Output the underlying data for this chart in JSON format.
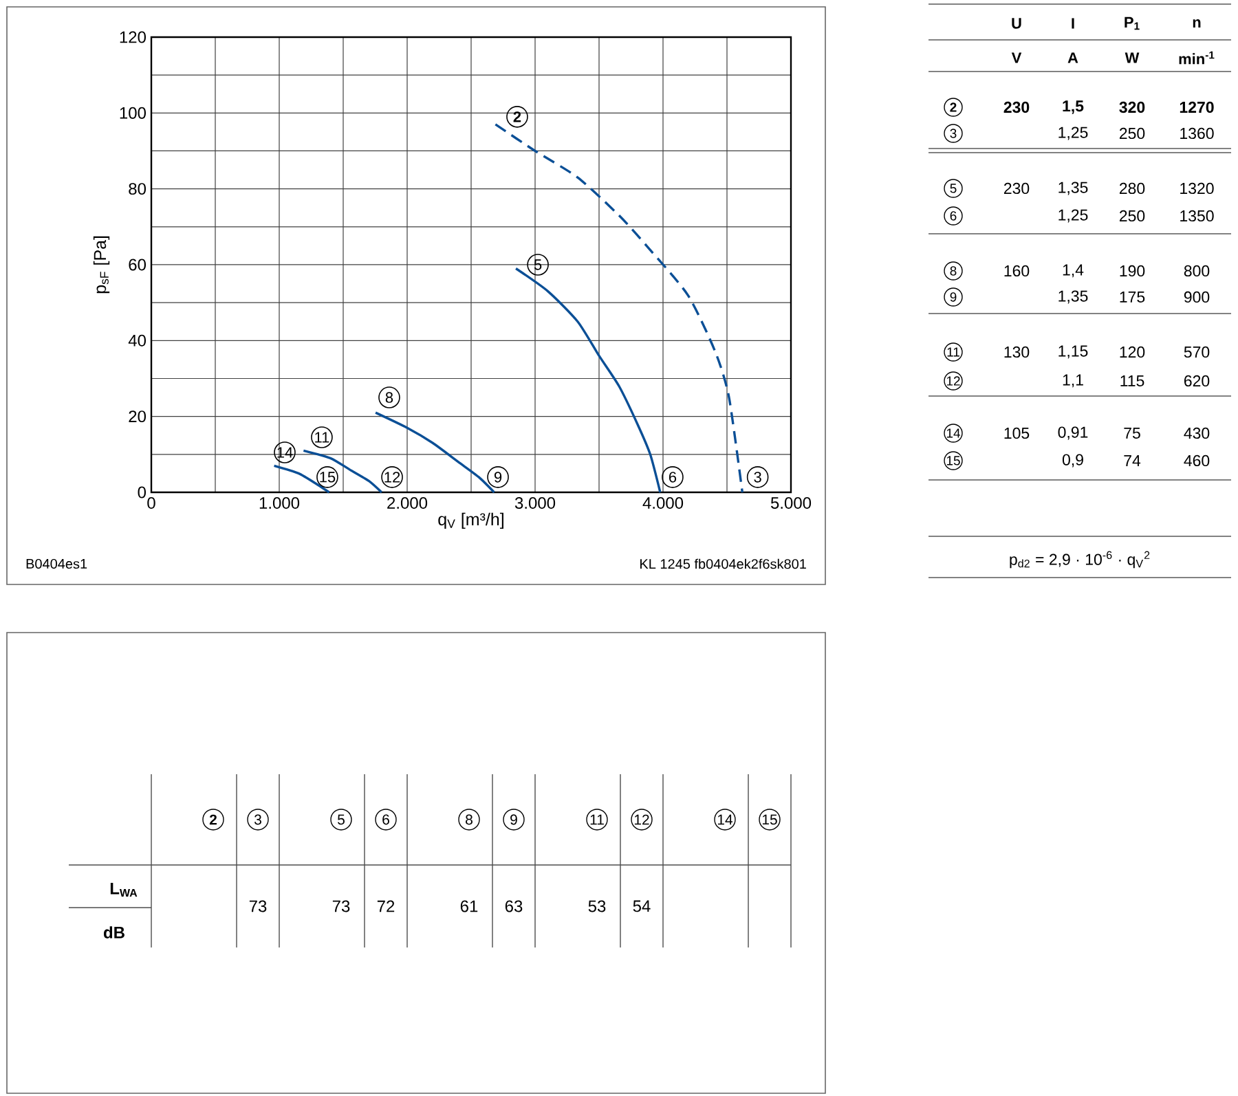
{
  "chart_data": [
    {
      "type": "line",
      "xlabel": "q$_{V}$ [m³/h]",
      "ylabel": "p$_{sF}$ [Pa]",
      "xlim": [
        0,
        5000
      ],
      "ylim": [
        0,
        120
      ],
      "xticks": [
        0,
        {
          "value": 500,
          "label": null
        },
        {
          "value": 1000,
          "label": "1.000"
        },
        {
          "value": 1500,
          "label": null
        },
        {
          "value": 2000,
          "label": "2.000"
        },
        {
          "value": 2500,
          "label": null
        },
        {
          "value": 3000,
          "label": "3.000"
        },
        {
          "value": 3500,
          "label": null
        },
        {
          "value": 4000,
          "label": "4.000"
        },
        {
          "value": 4500,
          "label": null
        },
        {
          "value": 5000,
          "label": "5.000"
        }
      ],
      "yticks": [
        0,
        {
          "value": 10,
          "label": null
        },
        20,
        {
          "value": 30,
          "label": null
        },
        40,
        {
          "value": 50,
          "label": null
        },
        60,
        {
          "value": 70,
          "label": null
        },
        80,
        {
          "value": 90,
          "label": null
        },
        100,
        {
          "value": 110,
          "label": null
        },
        120
      ],
      "grid": true,
      "series": [
        {
          "color": "#0b4f96",
          "line_style": "dashed",
          "x": [
            2690,
            3000,
            3333,
            3656,
            3871,
            4194,
            4409,
            4516,
            4620
          ],
          "values": [
            97,
            90,
            83,
            73,
            65,
            52,
            37,
            25,
            0
          ]
        },
        {
          "color": "#0b4f96",
          "line_style": "solid",
          "x": [
            2850,
            3100,
            3333,
            3500,
            3656,
            3800,
            3900,
            3978
          ],
          "values": [
            59,
            53,
            45,
            36,
            28,
            18,
            10,
            0
          ]
        },
        {
          "color": "#0b4f96",
          "line_style": "solid",
          "x": [
            1753,
            2000,
            2200,
            2400,
            2560,
            2680
          ],
          "values": [
            21,
            17,
            13,
            8,
            4,
            0
          ]
        },
        {
          "color": "#0b4f96",
          "line_style": "solid",
          "x": [
            1190,
            1400,
            1550,
            1700,
            1800
          ],
          "values": [
            11,
            9,
            6,
            3,
            0
          ]
        },
        {
          "color": "#0b4f96",
          "line_style": "solid",
          "x": [
            960,
            1150,
            1300,
            1390
          ],
          "values": [
            7,
            5,
            2,
            0
          ]
        }
      ],
      "annotations": [
        {
          "text": "**2**",
          "x": 2860,
          "y": 99
        },
        {
          "text": "3",
          "x": 4740,
          "y": 4
        },
        {
          "text": "5",
          "x": 3022,
          "y": 60
        },
        {
          "text": "6",
          "x": 4075,
          "y": 4
        },
        {
          "text": "8",
          "x": 1860,
          "y": 25
        },
        {
          "text": "9",
          "x": 2710,
          "y": 4
        },
        {
          "text": "11",
          "x": 1333,
          "y": 14.5
        },
        {
          "text": "12",
          "x": 1882,
          "y": 4
        },
        {
          "text": "14",
          "x": 1043,
          "y": 10.5
        },
        {
          "text": "15",
          "x": 1376,
          "y": 4
        },
        "B0404es1",
        "KL 1245 fb0404ek2f6sk801"
      ]
    },
    {
      "type": "other",
      "categories": [
        "U",
        "I",
        "P$_{1}$",
        "n"
      ],
      "y_categories": [
        "**2**",
        "3",
        "5",
        "6",
        "8",
        "9",
        "11",
        "12",
        "14",
        "15"
      ],
      "annotations": [
        "V",
        "A",
        "W",
        "min$^{-1}$",
        "**230**",
        "**1,5**",
        "**320**",
        "**1270**",
        "1,25",
        "250",
        "1360",
        "230",
        "1,35",
        "280",
        "1320",
        "1,25",
        "250",
        "1350",
        "160",
        "1,4",
        "190",
        "800",
        "1,35",
        "175",
        "900",
        "130",
        "1,15",
        "120",
        "570",
        "1,1",
        "115",
        "620",
        "105",
        "0,91",
        "75",
        "430",
        "0,9",
        "74",
        "460",
        "p$_{d2}$ = 2,9 · 10$^{-6}$ · q$_{V}$$^{2}$"
      ]
    },
    {
      "type": "other",
      "categories": [
        "**2**",
        "3",
        "5",
        "6",
        "8",
        "9",
        "11",
        "12",
        "14",
        "15"
      ],
      "value_labels": [
        null,
        "73",
        "73",
        "72",
        "61",
        "63",
        "53",
        "54",
        null,
        null
      ],
      "ylabel": "L$_{WA}$",
      "annotations": [
        "dB"
      ]
    }
  ]
}
